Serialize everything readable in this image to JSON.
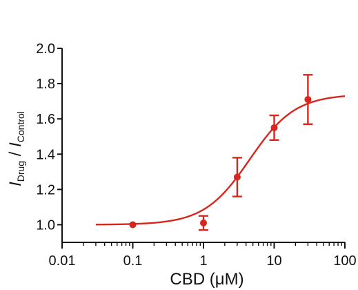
{
  "chart_data": {
    "type": "scatter",
    "xscale": "log",
    "xlabel": "CBD (μM)",
    "ylabel": {
      "num_main": "I",
      "num_sub": "Drug",
      "sep": " / ",
      "den_main": "I",
      "den_sub": "Control"
    },
    "xlim": [
      0.01,
      100
    ],
    "ylim": [
      0.9,
      2.0
    ],
    "x_ticks": [
      0.01,
      0.1,
      1,
      10,
      100
    ],
    "x_tick_labels": [
      "0.01",
      "0.1",
      "1",
      "10",
      "100"
    ],
    "y_ticks": [
      1.0,
      1.2,
      1.4,
      1.6,
      1.8,
      2.0
    ],
    "y_tick_labels": [
      "1.0",
      "1.2",
      "1.4",
      "1.6",
      "1.8",
      "2.0"
    ],
    "series": [
      {
        "points": [
          {
            "x": 0.1,
            "y": 1.0,
            "err": 0.0
          },
          {
            "x": 1,
            "y": 1.01,
            "err": 0.04
          },
          {
            "x": 3,
            "y": 1.27,
            "err": 0.11
          },
          {
            "x": 10,
            "y": 1.55,
            "err": 0.07
          },
          {
            "x": 30,
            "y": 1.71,
            "err": 0.14
          }
        ],
        "fit": {
          "model": "hill",
          "bottom": 1.0,
          "top": 1.74,
          "ec50": 4.5,
          "hill": 1.35,
          "x_range": [
            0.03,
            100
          ]
        }
      }
    ],
    "colors": {
      "series": "#d7261e",
      "axis": "#111111"
    },
    "grid": false,
    "legend": "none"
  }
}
